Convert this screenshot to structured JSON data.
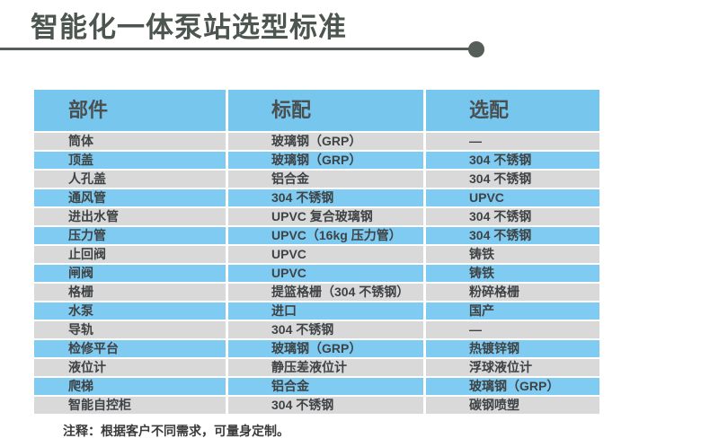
{
  "header": {
    "title": "智能化一体泵站选型标准",
    "accent_color": "#4c554f"
  },
  "table": {
    "columns": [
      "部件",
      "标配",
      "选配"
    ],
    "colors": {
      "header_bg": "#76c6ee",
      "row_blue": "#7fcbf1",
      "row_gray": "#d9d9d9"
    },
    "rows": [
      {
        "component": "筒体",
        "standard": "玻璃钢（GRP）",
        "optional": "—"
      },
      {
        "component": "顶盖",
        "standard": "玻璃钢（GRP）",
        "optional": "304 不锈钢"
      },
      {
        "component": "人孔盖",
        "standard": "铝合金",
        "optional": "304 不锈钢"
      },
      {
        "component": "通风管",
        "standard": "304 不锈钢",
        "optional": "UPVC"
      },
      {
        "component": "进出水管",
        "standard": "UPVC 复合玻璃钢",
        "optional": "304 不锈钢"
      },
      {
        "component": "压力管",
        "standard": "UPVC（16kg 压力管）",
        "optional": "304 不锈钢"
      },
      {
        "component": "止回阀",
        "standard": "UPVC",
        "optional": "铸铁"
      },
      {
        "component": "闸阀",
        "standard": "UPVC",
        "optional": "铸铁"
      },
      {
        "component": "格栅",
        "standard": "提篮格栅（304 不锈钢）",
        "optional": "粉碎格栅"
      },
      {
        "component": "水泵",
        "standard": "进口",
        "optional": "国产"
      },
      {
        "component": "导轨",
        "standard": "304 不锈钢",
        "optional": "—"
      },
      {
        "component": "检修平台",
        "standard": "玻璃钢（GRP）",
        "optional": "热镀锌钢"
      },
      {
        "component": "液位计",
        "standard": "静压差液位计",
        "optional": "浮球液位计"
      },
      {
        "component": "爬梯",
        "standard": "铝合金",
        "optional": "玻璃钢（GRP）"
      },
      {
        "component": "智能自控柜",
        "standard": "304 不锈钢",
        "optional": "碳钢喷塑"
      }
    ]
  },
  "footer": {
    "note": "注释：根据客户不同需求，可量身定制。"
  }
}
